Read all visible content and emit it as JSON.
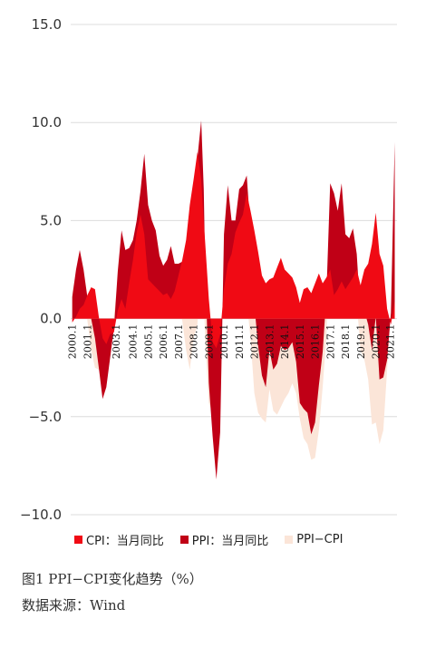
{
  "colors": {
    "cpi": "#f00a14",
    "ppi": "#c00016",
    "diff": "#fbe5d8"
  },
  "legend": {
    "cpi": "CPI：当月同比",
    "ppi": "PPI：当月同比",
    "diff": "PPI−CPI"
  },
  "caption": {
    "title": "图1  PPI−CPI变化趋势（%）",
    "source": "数据来源：Wind"
  },
  "chart_data": {
    "type": "area",
    "ylim": [
      -10,
      15
    ],
    "y_ticks": [
      "15.0",
      "10.0",
      "5.0",
      "0.0",
      "−5.0",
      "−10.0"
    ],
    "y_tick_values": [
      15,
      10,
      5,
      0,
      -5,
      -10
    ],
    "x_tick_labels": [
      "2000.1",
      "2001.1",
      "2003.1",
      "2004.1",
      "2005.1",
      "2006.1",
      "2007.1",
      "2008.1",
      "2009.1",
      "2010.1",
      "2011.1",
      "2012.1",
      "2013.1",
      "2014.1",
      "2015.1",
      "2016.1",
      "2017.1",
      "2018.1",
      "2019.1",
      "2020.1",
      "2021.1"
    ],
    "x_tick_positions": [
      2000.0,
      2001.0,
      2002.9,
      2004.0,
      2005.0,
      2006.0,
      2007.0,
      2008.0,
      2009.0,
      2010.0,
      2011.0,
      2012.0,
      2013.0,
      2014.0,
      2015.0,
      2016.0,
      2017.0,
      2018.0,
      2019.0,
      2020.0,
      2020.95
    ],
    "xlim": [
      1999.9,
      2021.4
    ],
    "x": [
      2000.0,
      2000.25,
      2000.5,
      2000.75,
      2001.0,
      2001.25,
      2001.5,
      2001.75,
      2002.0,
      2002.25,
      2002.5,
      2002.75,
      2003.0,
      2003.25,
      2003.5,
      2003.75,
      2004.0,
      2004.25,
      2004.5,
      2004.75,
      2005.0,
      2005.25,
      2005.5,
      2005.75,
      2006.0,
      2006.25,
      2006.5,
      2006.75,
      2007.0,
      2007.25,
      2007.5,
      2007.75,
      2008.0,
      2008.25,
      2008.5,
      2008.67,
      2008.75,
      2009.0,
      2009.25,
      2009.5,
      2009.75,
      2010.0,
      2010.25,
      2010.5,
      2010.75,
      2011.0,
      2011.25,
      2011.5,
      2011.75,
      2012.0,
      2012.25,
      2012.5,
      2012.75,
      2013.0,
      2013.25,
      2013.5,
      2013.75,
      2014.0,
      2014.25,
      2014.5,
      2014.75,
      2015.0,
      2015.25,
      2015.5,
      2015.75,
      2016.0,
      2016.25,
      2016.5,
      2016.75,
      2017.0,
      2017.25,
      2017.5,
      2017.75,
      2018.0,
      2018.25,
      2018.5,
      2018.75,
      2019.0,
      2019.25,
      2019.5,
      2019.75,
      2020.0,
      2020.25,
      2020.5,
      2020.75,
      2021.0,
      2021.25
    ],
    "series": [
      {
        "name": "CPI：当月同比",
        "values": [
          -0.2,
          0.1,
          0.5,
          0.7,
          1.2,
          1.6,
          1.5,
          0.1,
          -1.0,
          -1.3,
          -0.8,
          -0.7,
          0.4,
          1.0,
          0.5,
          1.8,
          3.0,
          4.4,
          5.3,
          4.3,
          2.0,
          1.8,
          1.6,
          1.4,
          1.2,
          1.3,
          1.0,
          1.4,
          2.2,
          3.0,
          4.0,
          5.8,
          7.1,
          8.5,
          7.1,
          4.9,
          4.0,
          1.0,
          -1.2,
          -1.5,
          -0.8,
          1.5,
          2.8,
          3.3,
          4.4,
          4.9,
          5.3,
          6.4,
          5.5,
          4.5,
          3.4,
          2.2,
          1.8,
          2.0,
          2.1,
          2.6,
          3.1,
          2.5,
          2.3,
          2.1,
          1.6,
          0.8,
          1.5,
          1.6,
          1.3,
          1.8,
          2.3,
          1.8,
          2.1,
          2.5,
          1.2,
          1.5,
          1.9,
          1.5,
          1.8,
          2.1,
          2.5,
          1.7,
          2.5,
          2.8,
          3.8,
          5.4,
          3.3,
          2.7,
          0.5,
          -0.3,
          0.9
        ]
      },
      {
        "name": "PPI：当月同比",
        "values": [
          1.1,
          2.5,
          3.5,
          2.5,
          1.1,
          0.0,
          -1.0,
          -2.5,
          -4.1,
          -3.5,
          -2.0,
          -0.5,
          2.4,
          4.5,
          3.5,
          3.6,
          4.0,
          5.0,
          6.5,
          8.4,
          5.8,
          5.0,
          4.5,
          3.2,
          2.7,
          3.0,
          3.7,
          2.8,
          2.8,
          2.9,
          2.4,
          3.2,
          6.1,
          8.2,
          10.1,
          6.6,
          3.0,
          -3.3,
          -6.0,
          -8.2,
          -5.8,
          4.3,
          6.8,
          5.0,
          5.0,
          6.6,
          6.8,
          7.3,
          4.5,
          0.7,
          -1.4,
          -2.9,
          -3.5,
          -1.6,
          -2.6,
          -2.3,
          -1.4,
          -1.6,
          -1.5,
          -1.2,
          -2.2,
          -4.3,
          -4.6,
          -4.8,
          -5.9,
          -5.3,
          -3.4,
          -1.7,
          1.2,
          6.9,
          6.4,
          5.5,
          6.9,
          4.3,
          4.1,
          4.6,
          3.3,
          0.1,
          0.4,
          -0.3,
          -1.6,
          0.1,
          -3.1,
          -3.0,
          -2.1,
          0.3,
          9.0
        ]
      },
      {
        "name": "PPI−CPI",
        "values": [
          1.3,
          2.4,
          3.0,
          1.8,
          -0.1,
          -1.6,
          -2.5,
          -2.6,
          -3.1,
          -2.2,
          -1.2,
          0.2,
          2.0,
          3.5,
          3.0,
          1.8,
          1.0,
          0.6,
          1.2,
          4.1,
          3.8,
          3.2,
          2.9,
          1.8,
          1.5,
          1.7,
          2.7,
          1.4,
          0.6,
          -0.1,
          -1.6,
          -2.6,
          -1.0,
          -0.3,
          3.0,
          1.7,
          -1.0,
          -4.3,
          -4.8,
          -6.7,
          -5.0,
          2.8,
          4.0,
          1.7,
          0.6,
          1.7,
          1.5,
          0.9,
          -1.0,
          -3.8,
          -4.8,
          -5.1,
          -5.3,
          -3.6,
          -4.7,
          -4.9,
          -4.5,
          -4.1,
          -3.8,
          -3.3,
          -3.8,
          -5.1,
          -6.1,
          -6.4,
          -7.2,
          -7.1,
          -5.7,
          -3.5,
          -0.9,
          4.4,
          5.2,
          4.0,
          5.0,
          2.8,
          2.3,
          2.5,
          0.8,
          -1.6,
          -2.1,
          -3.1,
          -5.4,
          -5.3,
          -6.4,
          -5.7,
          -2.6,
          0.6,
          8.1
        ]
      }
    ]
  }
}
